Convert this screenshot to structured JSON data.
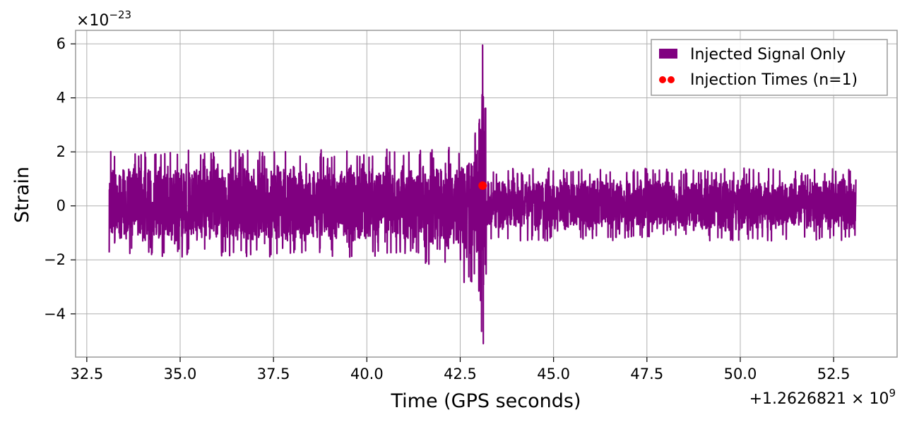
{
  "chart_data": {
    "type": "line",
    "title": "",
    "xlabel": "Time (GPS seconds)",
    "ylabel": "Strain",
    "x_offset_label": "+1.2626821 × 10",
    "x_offset_exponent": "9",
    "y_multiplier_label": "×10",
    "y_multiplier_exponent": "−23",
    "xlim": [
      32.2,
      54.2
    ],
    "ylim": [
      -5.6,
      6.5
    ],
    "x_ticks": [
      32.5,
      35.0,
      37.5,
      40.0,
      42.5,
      45.0,
      47.5,
      50.0,
      52.5
    ],
    "x_tick_labels": [
      "32.5",
      "35.0",
      "37.5",
      "40.0",
      "42.5",
      "45.0",
      "47.5",
      "50.0",
      "52.5"
    ],
    "y_ticks": [
      -4,
      -2,
      0,
      2,
      4,
      6
    ],
    "y_tick_labels": [
      "−4",
      "−2",
      "0",
      "2",
      "4",
      "6"
    ],
    "grid": true,
    "legend_position": "top-right",
    "series": [
      {
        "name": "Injected Signal Only",
        "color": "#800080",
        "kind": "line",
        "x_range": [
          33.1,
          53.1
        ],
        "segments": [
          {
            "x_from": 33.1,
            "x_to": 41.5,
            "y_lo": -1.9,
            "y_hi": 2.1
          },
          {
            "x_from": 41.5,
            "x_to": 42.6,
            "y_lo": -2.3,
            "y_hi": 2.2
          },
          {
            "x_from": 42.6,
            "x_to": 43.0,
            "y_lo": -3.0,
            "y_hi": 2.8
          },
          {
            "x_from": 43.0,
            "x_to": 43.2,
            "y_lo": -5.1,
            "y_hi": 5.95
          },
          {
            "x_from": 43.2,
            "x_to": 53.1,
            "y_lo": -1.3,
            "y_hi": 1.4
          }
        ]
      },
      {
        "name": "Injection Times (n=1)",
        "color": "#ff0000",
        "kind": "scatter",
        "points": [
          {
            "x": 43.1,
            "y": 0.75
          }
        ]
      }
    ]
  }
}
